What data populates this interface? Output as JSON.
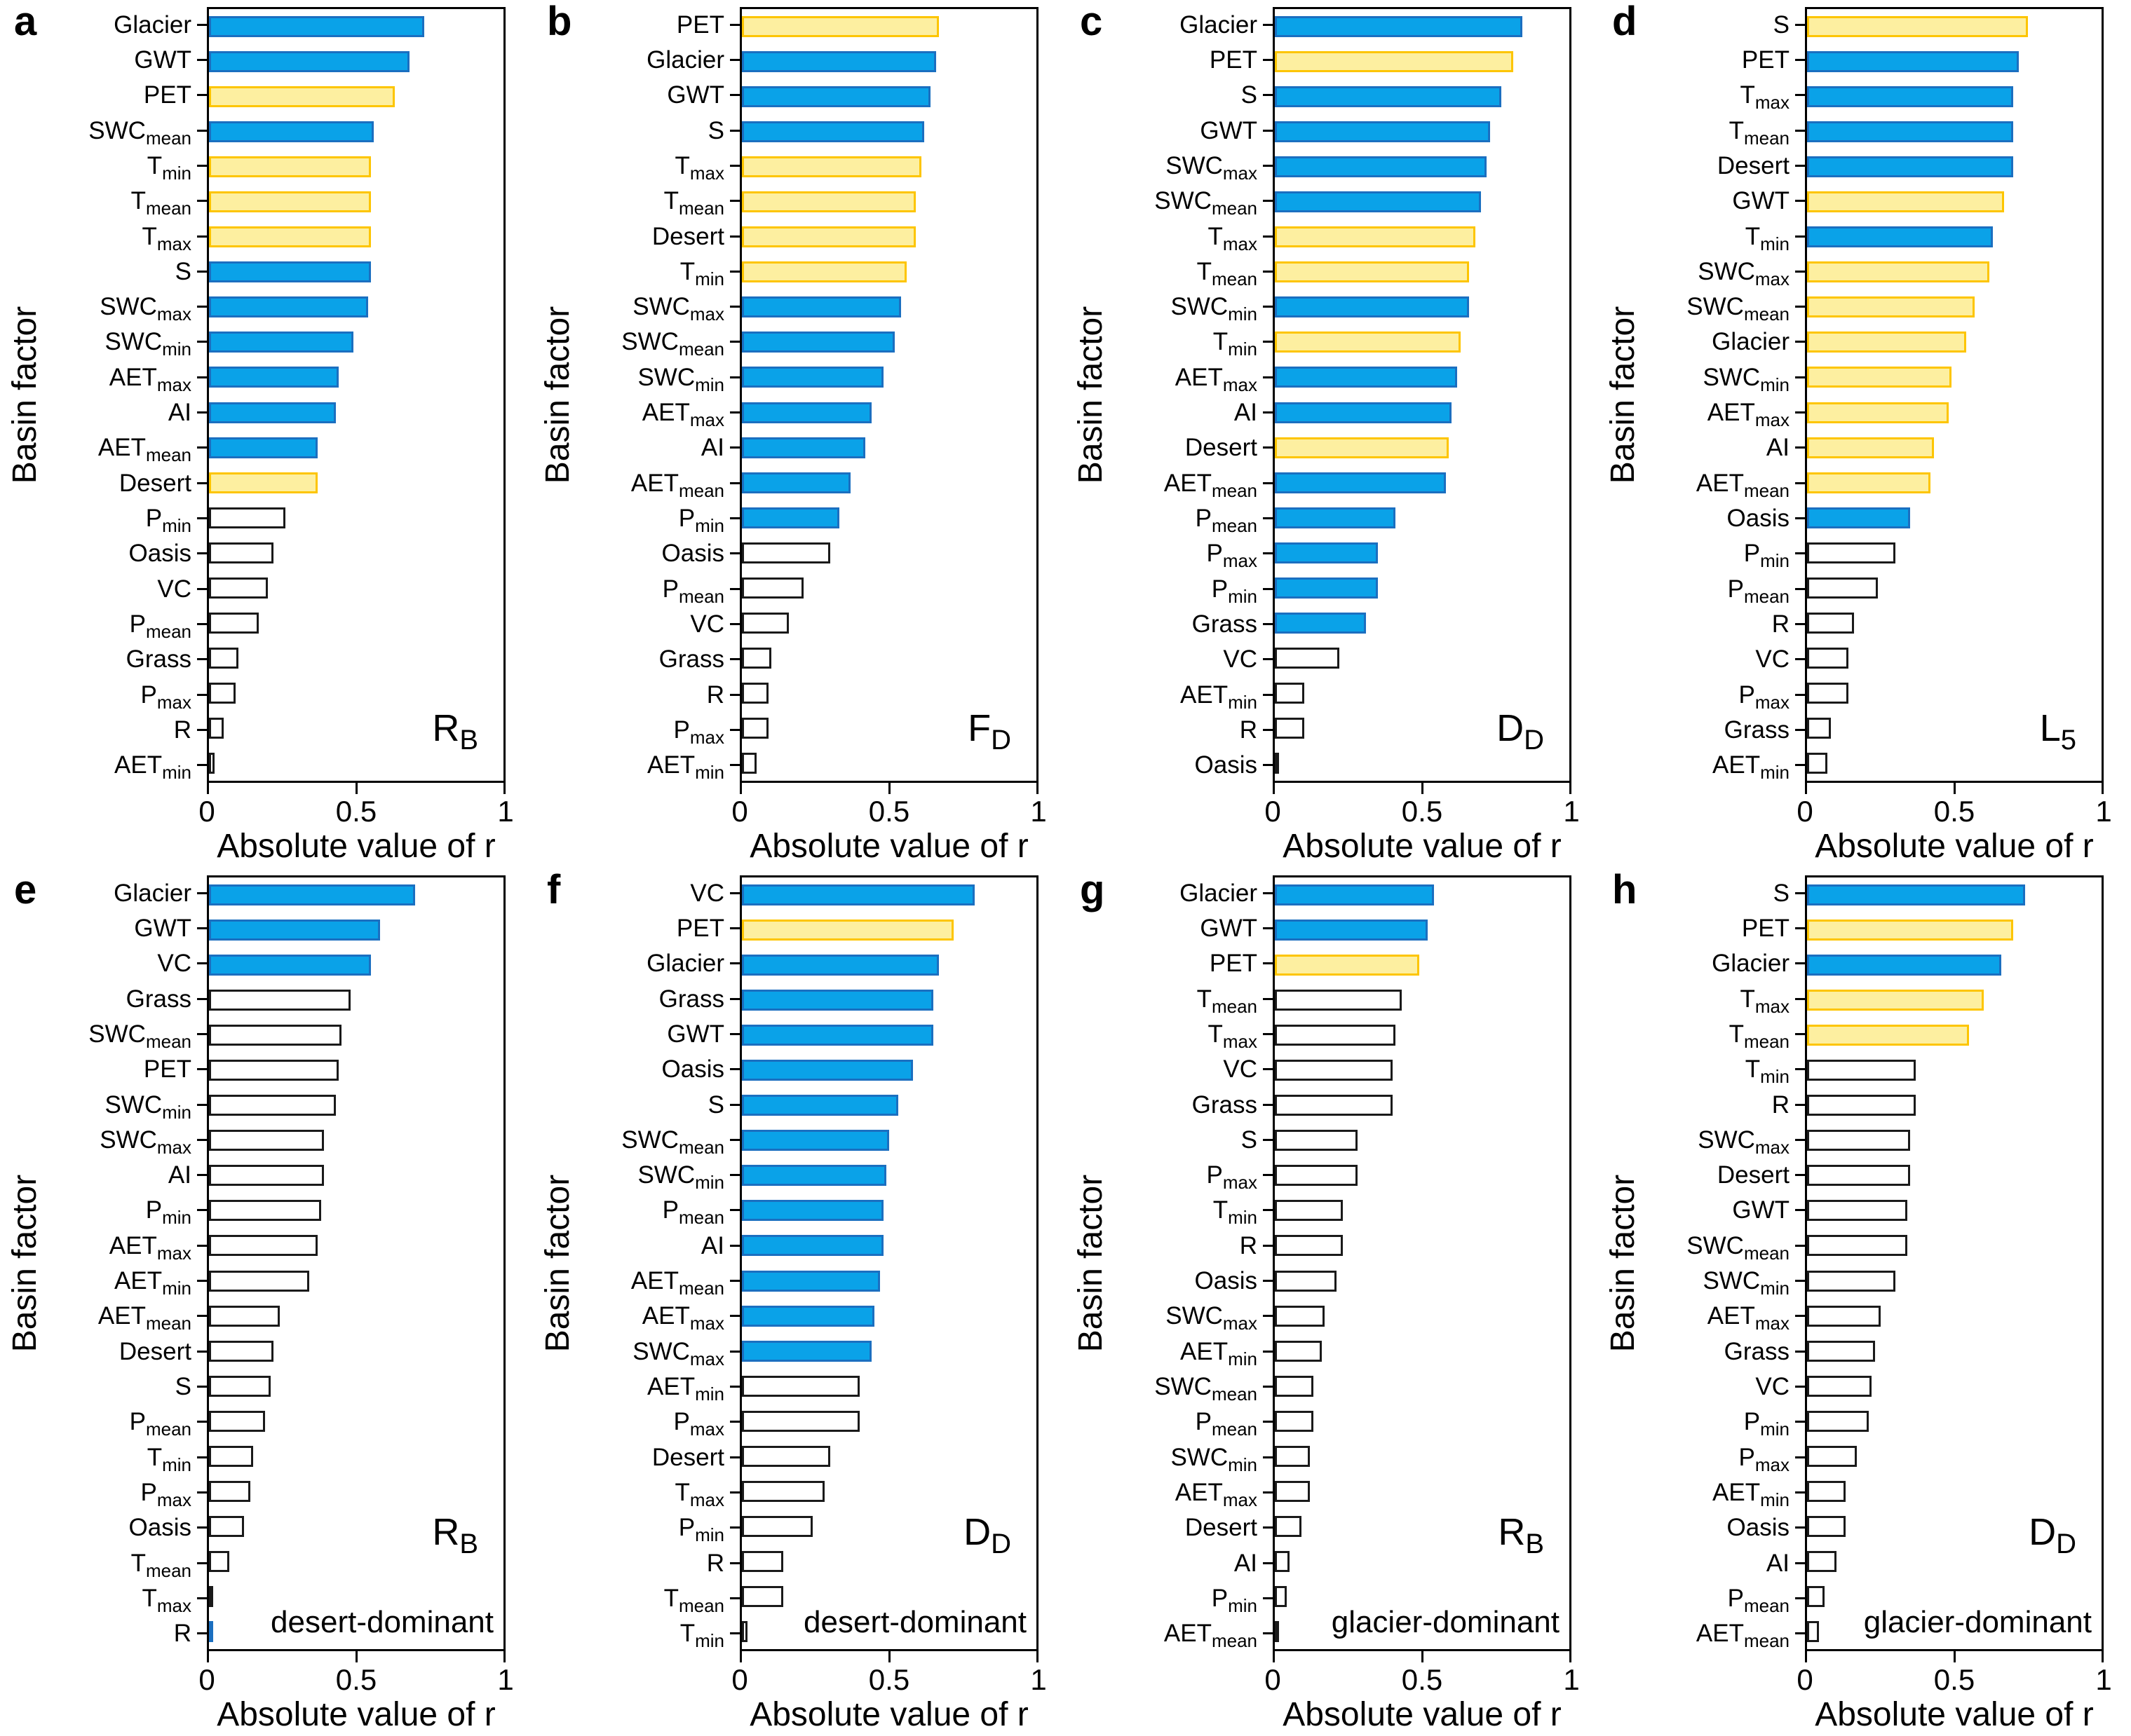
{
  "figure": {
    "xlabel": "Absolute value of r",
    "ylabel": "Basin factor",
    "xticks": [
      "0",
      "0.5",
      "1"
    ],
    "xlim": [
      0,
      1
    ],
    "colors": {
      "blue": {
        "fill": "#0aa2e8",
        "stroke": "#1b6fc0"
      },
      "yellow": {
        "fill": "#fdefa0",
        "stroke": "#fdc500"
      },
      "white": {
        "fill": "#ffffff",
        "stroke": "#1a1a1a"
      }
    }
  },
  "chart_data": [
    {
      "type": "bar",
      "orientation": "horizontal",
      "panel": "a",
      "annotation": {
        "text": "R",
        "sub": "B"
      },
      "note": "",
      "title": "",
      "xlabel": "Absolute value of r",
      "ylabel": "Basin factor",
      "bar_fields": [
        "label",
        "label_sub",
        "value",
        "color"
      ],
      "bars": [
        [
          "Glacier",
          "",
          0.73,
          "blue"
        ],
        [
          "GWT",
          "",
          0.68,
          "blue"
        ],
        [
          "PET",
          "",
          0.63,
          "yellow"
        ],
        [
          "SWC",
          "mean",
          0.56,
          "blue"
        ],
        [
          "T",
          "min",
          0.55,
          "yellow"
        ],
        [
          "T",
          "mean",
          0.55,
          "yellow"
        ],
        [
          "T",
          "max",
          0.55,
          "yellow"
        ],
        [
          "S",
          "",
          0.55,
          "blue"
        ],
        [
          "SWC",
          "max",
          0.54,
          "blue"
        ],
        [
          "SWC",
          "min",
          0.49,
          "blue"
        ],
        [
          "AET",
          "max",
          0.44,
          "blue"
        ],
        [
          "AI",
          "",
          0.43,
          "blue"
        ],
        [
          "AET",
          "mean",
          0.37,
          "blue"
        ],
        [
          "Desert",
          "",
          0.37,
          "yellow"
        ],
        [
          "P",
          "min",
          0.26,
          "white"
        ],
        [
          "Oasis",
          "",
          0.22,
          "white"
        ],
        [
          "VC",
          "",
          0.2,
          "white"
        ],
        [
          "P",
          "mean",
          0.17,
          "white"
        ],
        [
          "Grass",
          "",
          0.1,
          "white"
        ],
        [
          "P",
          "max",
          0.09,
          "white"
        ],
        [
          "R",
          "",
          0.05,
          "white"
        ],
        [
          "AET",
          "min",
          0.02,
          "white"
        ]
      ]
    },
    {
      "type": "bar",
      "orientation": "horizontal",
      "panel": "b",
      "annotation": {
        "text": "F",
        "sub": "D"
      },
      "note": "",
      "title": "",
      "xlabel": "Absolute value of r",
      "ylabel": "Basin factor",
      "bar_fields": [
        "label",
        "label_sub",
        "value",
        "color"
      ],
      "bars": [
        [
          "PET",
          "",
          0.67,
          "yellow"
        ],
        [
          "Glacier",
          "",
          0.66,
          "blue"
        ],
        [
          "GWT",
          "",
          0.64,
          "blue"
        ],
        [
          "S",
          "",
          0.62,
          "blue"
        ],
        [
          "T",
          "max",
          0.61,
          "yellow"
        ],
        [
          "T",
          "mean",
          0.59,
          "yellow"
        ],
        [
          "Desert",
          "",
          0.59,
          "yellow"
        ],
        [
          "T",
          "min",
          0.56,
          "yellow"
        ],
        [
          "SWC",
          "max",
          0.54,
          "blue"
        ],
        [
          "SWC",
          "mean",
          0.52,
          "blue"
        ],
        [
          "SWC",
          "min",
          0.48,
          "blue"
        ],
        [
          "AET",
          "max",
          0.44,
          "blue"
        ],
        [
          "AI",
          "",
          0.42,
          "blue"
        ],
        [
          "AET",
          "mean",
          0.37,
          "blue"
        ],
        [
          "P",
          "min",
          0.33,
          "blue"
        ],
        [
          "Oasis",
          "",
          0.3,
          "white"
        ],
        [
          "P",
          "mean",
          0.21,
          "white"
        ],
        [
          "VC",
          "",
          0.16,
          "white"
        ],
        [
          "Grass",
          "",
          0.1,
          "white"
        ],
        [
          "R",
          "",
          0.09,
          "white"
        ],
        [
          "P",
          "max",
          0.09,
          "white"
        ],
        [
          "AET",
          "min",
          0.05,
          "white"
        ]
      ]
    },
    {
      "type": "bar",
      "orientation": "horizontal",
      "panel": "c",
      "annotation": {
        "text": "D",
        "sub": "D"
      },
      "note": "",
      "title": "",
      "xlabel": "Absolute value of r",
      "ylabel": "Basin factor",
      "bar_fields": [
        "label",
        "label_sub",
        "value",
        "color"
      ],
      "bars": [
        [
          "Glacier",
          "",
          0.84,
          "blue"
        ],
        [
          "PET",
          "",
          0.81,
          "yellow"
        ],
        [
          "S",
          "",
          0.77,
          "blue"
        ],
        [
          "GWT",
          "",
          0.73,
          "blue"
        ],
        [
          "SWC",
          "max",
          0.72,
          "blue"
        ],
        [
          "SWC",
          "mean",
          0.7,
          "blue"
        ],
        [
          "T",
          "max",
          0.68,
          "yellow"
        ],
        [
          "T",
          "mean",
          0.66,
          "yellow"
        ],
        [
          "SWC",
          "min",
          0.66,
          "blue"
        ],
        [
          "T",
          "min",
          0.63,
          "yellow"
        ],
        [
          "AET",
          "max",
          0.62,
          "blue"
        ],
        [
          "AI",
          "",
          0.6,
          "blue"
        ],
        [
          "Desert",
          "",
          0.59,
          "yellow"
        ],
        [
          "AET",
          "mean",
          0.58,
          "blue"
        ],
        [
          "P",
          "mean",
          0.41,
          "blue"
        ],
        [
          "P",
          "max",
          0.35,
          "blue"
        ],
        [
          "P",
          "min",
          0.35,
          "blue"
        ],
        [
          "Grass",
          "",
          0.31,
          "blue"
        ],
        [
          "VC",
          "",
          0.22,
          "white"
        ],
        [
          "AET",
          "min",
          0.1,
          "white"
        ],
        [
          "R",
          "",
          0.1,
          "white"
        ],
        [
          "Oasis",
          "",
          0.01,
          "white"
        ]
      ]
    },
    {
      "type": "bar",
      "orientation": "horizontal",
      "panel": "d",
      "annotation": {
        "text": "L",
        "sub": "5"
      },
      "note": "",
      "title": "",
      "xlabel": "Absolute value of r",
      "ylabel": "Basin factor",
      "bar_fields": [
        "label",
        "label_sub",
        "value",
        "color"
      ],
      "bars": [
        [
          "S",
          "",
          0.75,
          "yellow"
        ],
        [
          "PET",
          "",
          0.72,
          "blue"
        ],
        [
          "T",
          "max",
          0.7,
          "blue"
        ],
        [
          "T",
          "mean",
          0.7,
          "blue"
        ],
        [
          "Desert",
          "",
          0.7,
          "blue"
        ],
        [
          "GWT",
          "",
          0.67,
          "yellow"
        ],
        [
          "T",
          "min",
          0.63,
          "blue"
        ],
        [
          "SWC",
          "max",
          0.62,
          "yellow"
        ],
        [
          "SWC",
          "mean",
          0.57,
          "yellow"
        ],
        [
          "Glacier",
          "",
          0.54,
          "yellow"
        ],
        [
          "SWC",
          "min",
          0.49,
          "yellow"
        ],
        [
          "AET",
          "max",
          0.48,
          "yellow"
        ],
        [
          "AI",
          "",
          0.43,
          "yellow"
        ],
        [
          "AET",
          "mean",
          0.42,
          "yellow"
        ],
        [
          "Oasis",
          "",
          0.35,
          "blue"
        ],
        [
          "P",
          "min",
          0.3,
          "white"
        ],
        [
          "P",
          "mean",
          0.24,
          "white"
        ],
        [
          "R",
          "",
          0.16,
          "white"
        ],
        [
          "VC",
          "",
          0.14,
          "white"
        ],
        [
          "P",
          "max",
          0.14,
          "white"
        ],
        [
          "Grass",
          "",
          0.08,
          "white"
        ],
        [
          "AET",
          "min",
          0.07,
          "white"
        ]
      ]
    },
    {
      "type": "bar",
      "orientation": "horizontal",
      "panel": "e",
      "annotation": {
        "text": "R",
        "sub": "B"
      },
      "note": "desert-dominant",
      "title": "",
      "xlabel": "Absolute value of r",
      "ylabel": "Basin factor",
      "bar_fields": [
        "label",
        "label_sub",
        "value",
        "color"
      ],
      "bars": [
        [
          "Glacier",
          "",
          0.7,
          "blue"
        ],
        [
          "GWT",
          "",
          0.58,
          "blue"
        ],
        [
          "VC",
          "",
          0.55,
          "blue"
        ],
        [
          "Grass",
          "",
          0.48,
          "white"
        ],
        [
          "SWC",
          "mean",
          0.45,
          "white"
        ],
        [
          "PET",
          "",
          0.44,
          "white"
        ],
        [
          "SWC",
          "min",
          0.43,
          "white"
        ],
        [
          "SWC",
          "max",
          0.39,
          "white"
        ],
        [
          "AI",
          "",
          0.39,
          "white"
        ],
        [
          "P",
          "min",
          0.38,
          "white"
        ],
        [
          "AET",
          "max",
          0.37,
          "white"
        ],
        [
          "AET",
          "min",
          0.34,
          "white"
        ],
        [
          "AET",
          "mean",
          0.24,
          "white"
        ],
        [
          "Desert",
          "",
          0.22,
          "white"
        ],
        [
          "S",
          "",
          0.21,
          "white"
        ],
        [
          "P",
          "mean",
          0.19,
          "white"
        ],
        [
          "T",
          "min",
          0.15,
          "white"
        ],
        [
          "P",
          "max",
          0.14,
          "white"
        ],
        [
          "Oasis",
          "",
          0.12,
          "white"
        ],
        [
          "T",
          "mean",
          0.07,
          "white"
        ],
        [
          "T",
          "max",
          0.015,
          "white"
        ],
        [
          "R",
          "",
          0.008,
          "blue"
        ]
      ]
    },
    {
      "type": "bar",
      "orientation": "horizontal",
      "panel": "f",
      "annotation": {
        "text": "D",
        "sub": "D"
      },
      "note": "desert-dominant",
      "title": "",
      "xlabel": "Absolute value of r",
      "ylabel": "Basin factor",
      "bar_fields": [
        "label",
        "label_sub",
        "value",
        "color"
      ],
      "bars": [
        [
          "VC",
          "",
          0.79,
          "blue"
        ],
        [
          "PET",
          "",
          0.72,
          "yellow"
        ],
        [
          "Glacier",
          "",
          0.67,
          "blue"
        ],
        [
          "Grass",
          "",
          0.65,
          "blue"
        ],
        [
          "GWT",
          "",
          0.65,
          "blue"
        ],
        [
          "Oasis",
          "",
          0.58,
          "blue"
        ],
        [
          "S",
          "",
          0.53,
          "blue"
        ],
        [
          "SWC",
          "mean",
          0.5,
          "blue"
        ],
        [
          "SWC",
          "min",
          0.49,
          "blue"
        ],
        [
          "P",
          "mean",
          0.48,
          "blue"
        ],
        [
          "AI",
          "",
          0.48,
          "blue"
        ],
        [
          "AET",
          "mean",
          0.47,
          "blue"
        ],
        [
          "AET",
          "max",
          0.45,
          "blue"
        ],
        [
          "SWC",
          "max",
          0.44,
          "blue"
        ],
        [
          "AET",
          "min",
          0.4,
          "white"
        ],
        [
          "P",
          "max",
          0.4,
          "white"
        ],
        [
          "Desert",
          "",
          0.3,
          "white"
        ],
        [
          "T",
          "max",
          0.28,
          "white"
        ],
        [
          "P",
          "min",
          0.24,
          "white"
        ],
        [
          "R",
          "",
          0.14,
          "white"
        ],
        [
          "T",
          "mean",
          0.14,
          "white"
        ],
        [
          "T",
          "min",
          0.02,
          "white"
        ]
      ]
    },
    {
      "type": "bar",
      "orientation": "horizontal",
      "panel": "g",
      "annotation": {
        "text": "R",
        "sub": "B"
      },
      "note": "glacier-dominant",
      "title": "",
      "xlabel": "Absolute value of r",
      "ylabel": "Basin factor",
      "bar_fields": [
        "label",
        "label_sub",
        "value",
        "color"
      ],
      "bars": [
        [
          "Glacier",
          "",
          0.54,
          "blue"
        ],
        [
          "GWT",
          "",
          0.52,
          "blue"
        ],
        [
          "PET",
          "",
          0.49,
          "yellow"
        ],
        [
          "T",
          "mean",
          0.43,
          "white"
        ],
        [
          "T",
          "max",
          0.41,
          "white"
        ],
        [
          "VC",
          "",
          0.4,
          "white"
        ],
        [
          "Grass",
          "",
          0.4,
          "white"
        ],
        [
          "S",
          "",
          0.28,
          "white"
        ],
        [
          "P",
          "max",
          0.28,
          "white"
        ],
        [
          "T",
          "min",
          0.23,
          "white"
        ],
        [
          "R",
          "",
          0.23,
          "white"
        ],
        [
          "Oasis",
          "",
          0.21,
          "white"
        ],
        [
          "SWC",
          "max",
          0.17,
          "white"
        ],
        [
          "AET",
          "min",
          0.16,
          "white"
        ],
        [
          "SWC",
          "mean",
          0.13,
          "white"
        ],
        [
          "P",
          "mean",
          0.13,
          "white"
        ],
        [
          "SWC",
          "min",
          0.12,
          "white"
        ],
        [
          "AET",
          "max",
          0.12,
          "white"
        ],
        [
          "Desert",
          "",
          0.09,
          "white"
        ],
        [
          "AI",
          "",
          0.05,
          "white"
        ],
        [
          "P",
          "min",
          0.04,
          "white"
        ],
        [
          "AET",
          "mean",
          0.015,
          "white"
        ]
      ]
    },
    {
      "type": "bar",
      "orientation": "horizontal",
      "panel": "h",
      "annotation": {
        "text": "D",
        "sub": "D"
      },
      "note": "glacier-dominant",
      "title": "",
      "xlabel": "Absolute value of r",
      "ylabel": "Basin factor",
      "bar_fields": [
        "label",
        "label_sub",
        "value",
        "color"
      ],
      "bars": [
        [
          "S",
          "",
          0.74,
          "blue"
        ],
        [
          "PET",
          "",
          0.7,
          "yellow"
        ],
        [
          "Glacier",
          "",
          0.66,
          "blue"
        ],
        [
          "T",
          "max",
          0.6,
          "yellow"
        ],
        [
          "T",
          "mean",
          0.55,
          "yellow"
        ],
        [
          "T",
          "min",
          0.37,
          "white"
        ],
        [
          "R",
          "",
          0.37,
          "white"
        ],
        [
          "SWC",
          "max",
          0.35,
          "white"
        ],
        [
          "Desert",
          "",
          0.35,
          "white"
        ],
        [
          "GWT",
          "",
          0.34,
          "white"
        ],
        [
          "SWC",
          "mean",
          0.34,
          "white"
        ],
        [
          "SWC",
          "min",
          0.3,
          "white"
        ],
        [
          "AET",
          "max",
          0.25,
          "white"
        ],
        [
          "Grass",
          "",
          0.23,
          "white"
        ],
        [
          "VC",
          "",
          0.22,
          "white"
        ],
        [
          "P",
          "min",
          0.21,
          "white"
        ],
        [
          "P",
          "max",
          0.17,
          "white"
        ],
        [
          "AET",
          "min",
          0.13,
          "white"
        ],
        [
          "Oasis",
          "",
          0.13,
          "white"
        ],
        [
          "AI",
          "",
          0.1,
          "white"
        ],
        [
          "P",
          "mean",
          0.06,
          "white"
        ],
        [
          "AET",
          "mean",
          0.04,
          "white"
        ]
      ]
    }
  ]
}
